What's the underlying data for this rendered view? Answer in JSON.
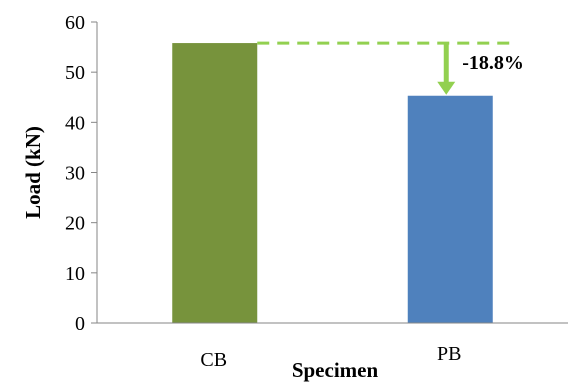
{
  "chart_data": {
    "type": "bar",
    "categories": [
      "CB",
      "PB"
    ],
    "values": [
      55.8,
      45.3
    ],
    "bar_colors": [
      "#77933C",
      "#4F81BD"
    ],
    "xlabel": "Specimen",
    "ylabel": "Load (kN)",
    "ylim": [
      0,
      60
    ],
    "yticks": [
      0,
      10,
      20,
      30,
      40,
      50,
      60
    ],
    "grid": false,
    "annotation": {
      "text": "-18.8%",
      "color": "#92D050",
      "style": "dashed reference line from CB level with downward arrow to PB"
    }
  }
}
